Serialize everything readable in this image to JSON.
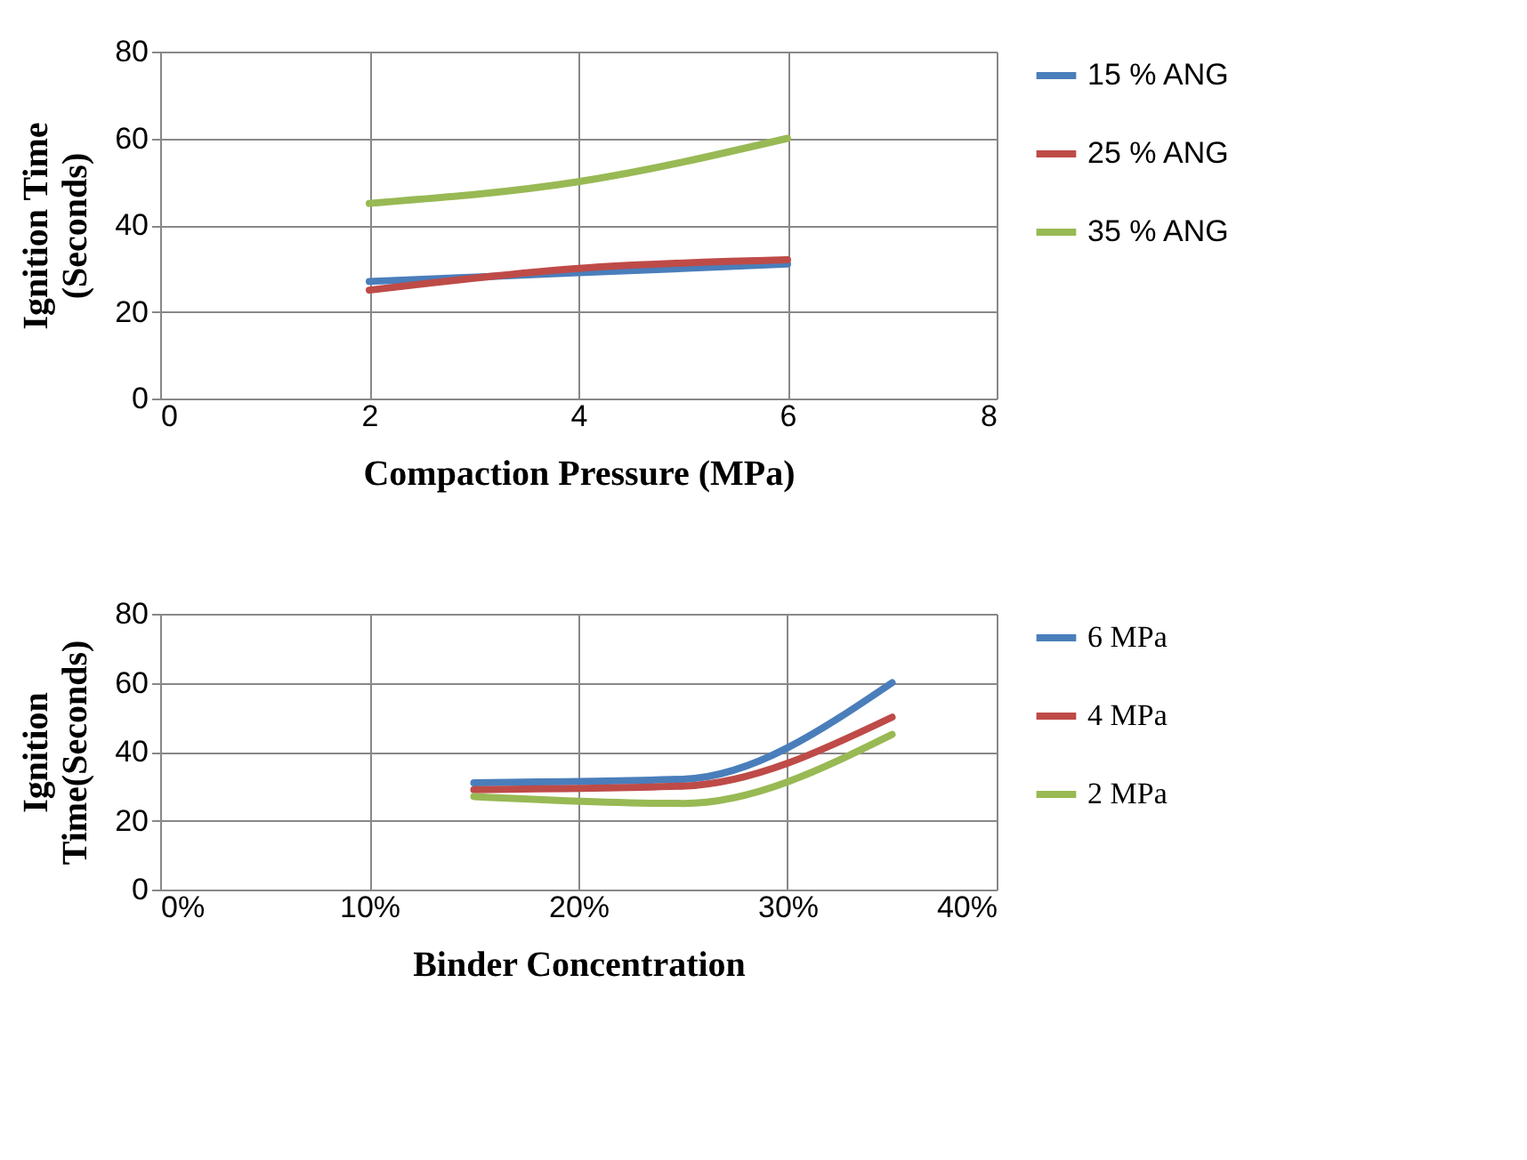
{
  "chart_data": [
    {
      "type": "line",
      "xlabel": "Compaction Pressure (MPa)",
      "ylabel": "Ignition Time\n(Seconds)",
      "x": [
        2,
        4,
        6
      ],
      "xlim": [
        0,
        8
      ],
      "xticks": [
        0,
        2,
        4,
        6,
        8
      ],
      "ylim": [
        0,
        80
      ],
      "yticks": [
        0,
        20,
        40,
        60,
        80
      ],
      "grid": true,
      "legend": "right",
      "series": [
        {
          "name": "15 % ANG",
          "color": "#4a7ebb",
          "values": [
            27,
            29,
            31
          ]
        },
        {
          "name": "25 % ANG",
          "color": "#be4b48",
          "values": [
            25,
            30,
            32
          ]
        },
        {
          "name": "35 % ANG",
          "color": "#98b954",
          "values": [
            45,
            50,
            60
          ]
        }
      ]
    },
    {
      "type": "line",
      "xlabel": "Binder Concentration",
      "ylabel": "Ignition\nTime(Seconds)",
      "x": [
        0.15,
        0.25,
        0.35
      ],
      "xlim": [
        0,
        0.4
      ],
      "xticks": [
        {
          "value": 0,
          "label": "0%"
        },
        {
          "value": 0.1,
          "label": "10%"
        },
        {
          "value": 0.2,
          "label": "20%"
        },
        {
          "value": 0.3,
          "label": "30%"
        },
        {
          "value": 0.4,
          "label": "40%"
        }
      ],
      "ylim": [
        0,
        80
      ],
      "yticks": [
        0,
        20,
        40,
        60,
        80
      ],
      "grid": true,
      "legend": "right",
      "series": [
        {
          "name": "6 MPa",
          "color": "#4a7ebb",
          "values": [
            31,
            32,
            60
          ]
        },
        {
          "name": "4 MPa",
          "color": "#be4b48",
          "values": [
            29,
            30,
            50
          ]
        },
        {
          "name": "2 MPa",
          "color": "#98b954",
          "values": [
            27,
            25,
            45
          ]
        }
      ]
    }
  ]
}
